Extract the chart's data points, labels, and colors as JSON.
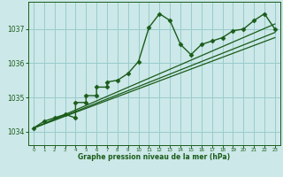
{
  "bg_color": "#cce8e8",
  "grid_color": "#99cccc",
  "line_color": "#1a5c1a",
  "marker_color": "#1a5c1a",
  "xlabel": "Graphe pression niveau de la mer (hPa)",
  "xlabel_color": "#1a5c1a",
  "ylabel_ticks": [
    1034,
    1035,
    1036,
    1037
  ],
  "xlim": [
    -0.5,
    23.5
  ],
  "ylim": [
    1033.6,
    1037.8
  ],
  "main_series_x": [
    0,
    1,
    2,
    3,
    4,
    4,
    5,
    5,
    6,
    6,
    7,
    7,
    8,
    9,
    10,
    11,
    12,
    13,
    14,
    15,
    16,
    17,
    18,
    19,
    20,
    21,
    22,
    23
  ],
  "main_series_y": [
    1034.1,
    1034.3,
    1034.4,
    1034.5,
    1034.4,
    1034.85,
    1034.85,
    1035.05,
    1035.05,
    1035.3,
    1035.3,
    1035.45,
    1035.5,
    1035.7,
    1036.05,
    1037.05,
    1037.45,
    1037.25,
    1036.55,
    1036.25,
    1036.55,
    1036.65,
    1036.75,
    1036.95,
    1037.0,
    1037.25,
    1037.45,
    1037.0
  ],
  "line1_x": [
    0,
    23
  ],
  "line1_y": [
    1034.1,
    1037.15
  ],
  "line2_x": [
    0,
    23
  ],
  "line2_y": [
    1034.1,
    1036.9
  ],
  "line3_x": [
    0,
    23
  ],
  "line3_y": [
    1034.1,
    1036.75
  ]
}
